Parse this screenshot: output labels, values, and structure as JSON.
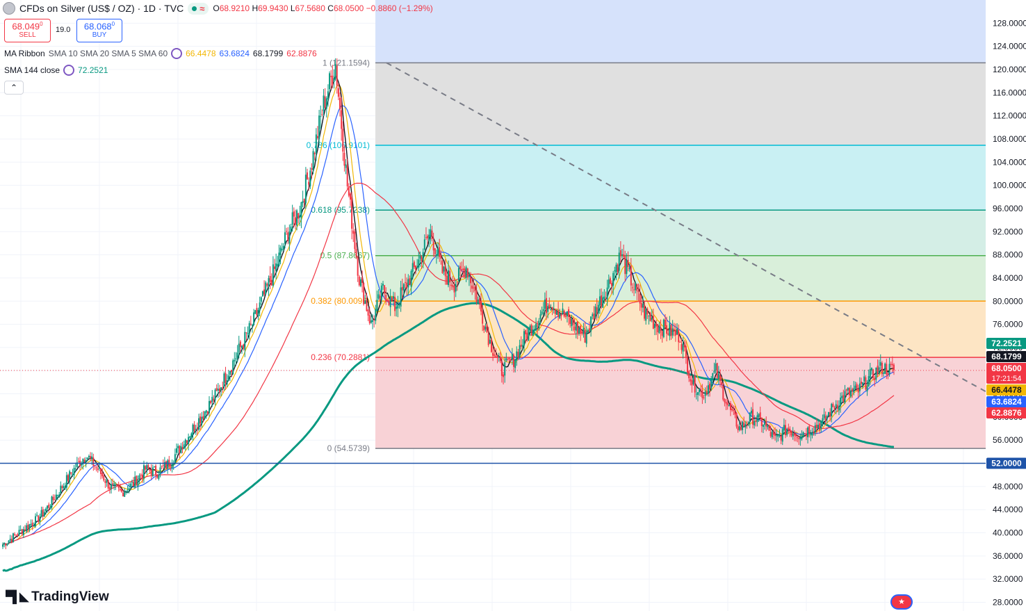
{
  "header": {
    "symbol_title": "CFDs on Silver (US$ / OZ) · 1D · TVC",
    "ohlc": {
      "o_label": "O",
      "o": "68.9210",
      "h_label": "H",
      "h": "69.9430",
      "l_label": "L",
      "l": "67.5680",
      "c_label": "C",
      "c": "68.0500",
      "change": "−0.8860 (−1.29%)"
    },
    "status_icon": "wave-icon",
    "market_status_color": "#089981"
  },
  "trade": {
    "sell_price": "68.049",
    "sell_price_sup": "0",
    "sell_label": "SELL",
    "spread": "19.0",
    "buy_price": "68.068",
    "buy_price_sup": "0",
    "buy_label": "BUY"
  },
  "indicators": {
    "ribbon_label": "MA Ribbon",
    "ribbon_params": "SMA 10 SMA 20 SMA 5 SMA 60",
    "ribbon_values": [
      "66.4478",
      "63.6824",
      "68.1799",
      "62.8876"
    ],
    "ribbon_colors": [
      "#f2b705",
      "#2962ff",
      "#131722",
      "#f23645"
    ],
    "sma144_label": "SMA 144 close",
    "sma144_value": "72.2521",
    "sma144_color": "#089981",
    "collapse_icon": "chevron-up-icon"
  },
  "branding": {
    "logo_text": "TradingView",
    "flag_icon": "us-flag-icon"
  },
  "chart_data": {
    "type": "candlestick",
    "title": "CFDs on Silver (US$ / OZ) · 1D · TVC",
    "y_axis_ticks": [
      28,
      32,
      36,
      40,
      44,
      48,
      52,
      56,
      60,
      64,
      68,
      72,
      76,
      80,
      84,
      88,
      92,
      96,
      100,
      104,
      108,
      112,
      116,
      120,
      124,
      128
    ],
    "y_axis_tick_labels": [
      "28.0000",
      "32.0000",
      "36.0000",
      "40.0000",
      "44.0000",
      "48.0000",
      "52.0000",
      "56.0000",
      "60.0000",
      "64.0000",
      "68.0000",
      "72.0000",
      "76.0000",
      "80.0000",
      "84.0000",
      "88.0000",
      "92.0000",
      "96.0000",
      "100.0000",
      "104.0000",
      "108.0000",
      "112.0000",
      "116.0000",
      "120.0000",
      "124.0000",
      "128.0000"
    ],
    "ylim": [
      26.5,
      132
    ],
    "fibonacci": {
      "levels": [
        {
          "ratio": "1",
          "value": 121.1594,
          "label": "1 (121.1594)",
          "color": "#787b86",
          "fill": "#e0e0e0"
        },
        {
          "ratio": "0.786",
          "value": 106.9101,
          "label": "0.786 (106.9101)",
          "color": "#00bcd4",
          "fill": "#c9f0f3"
        },
        {
          "ratio": "0.618",
          "value": 95.7238,
          "label": "0.618 (95.7238)",
          "color": "#089981",
          "fill": "#d4eee6"
        },
        {
          "ratio": "0.5",
          "value": 87.8667,
          "label": "0.5 (87.8667)",
          "color": "#4caf50",
          "fill": "#d9efda"
        },
        {
          "ratio": "0.382",
          "value": 80.0096,
          "label": "0.382 (80.0096)",
          "color": "#ff9800",
          "fill": "#fde5c4"
        },
        {
          "ratio": "0.236",
          "value": 70.2881,
          "label": "0.236 (70.2881)",
          "color": "#f23645",
          "fill": "#f8d2d6"
        },
        {
          "ratio": "0",
          "value": 54.5739,
          "label": "0 (54.5739)",
          "color": "#787b86",
          "fill": ""
        }
      ],
      "top_fill": "#d6e2fb"
    },
    "horizontal_line": {
      "value": 52.0,
      "label": "52.0000",
      "color": "#1e53a8"
    },
    "trendline": {
      "style": "dashed",
      "color": "#787b86",
      "from": 121.16,
      "to": 69.2
    },
    "price_badges": [
      {
        "value": 72.2521,
        "label": "72.2521",
        "color": "#089981"
      },
      {
        "value": 68.1799,
        "label": "68.1799",
        "color": "#131722"
      },
      {
        "value": 68.05,
        "label": "68.0500",
        "sub": "17:21:54",
        "color": "#f23645"
      },
      {
        "value": 66.4478,
        "label": "66.4478",
        "color": "#f2b705",
        "text_color": "#131722"
      },
      {
        "value": 63.6824,
        "label": "63.6824",
        "color": "#2962ff"
      },
      {
        "value": 62.8876,
        "label": "62.8876",
        "color": "#f23645"
      }
    ],
    "candle_colors": {
      "up": "#089981",
      "down": "#f23645"
    },
    "price_path": [
      38,
      39.5,
      41,
      42.5,
      45,
      48,
      51,
      53.5,
      51,
      48,
      47,
      48.5,
      51,
      50.5,
      52,
      55,
      58,
      61,
      64,
      68,
      72,
      76,
      81,
      86,
      92,
      96,
      104,
      114,
      121,
      100,
      84,
      76,
      82,
      79,
      83,
      87,
      92,
      85,
      83,
      86,
      80,
      73,
      68,
      70,
      74,
      77,
      80,
      78,
      76,
      74,
      79,
      83,
      88,
      83,
      78,
      76,
      75,
      74,
      66,
      64,
      68,
      62,
      58,
      60,
      59,
      56,
      58,
      57,
      58,
      59,
      62,
      64,
      64.5,
      67,
      68.5,
      68.05
    ],
    "path_steps": 8,
    "ma_ribbon": {
      "periods": [
        10,
        20,
        5,
        60
      ],
      "colors": [
        "#f2b705",
        "#2962ff",
        "#131722",
        "#f23645"
      ],
      "last": [
        66.4478,
        63.6824,
        68.1799,
        62.8876
      ]
    },
    "sma144": {
      "last": 72.2521,
      "color": "#089981"
    }
  }
}
